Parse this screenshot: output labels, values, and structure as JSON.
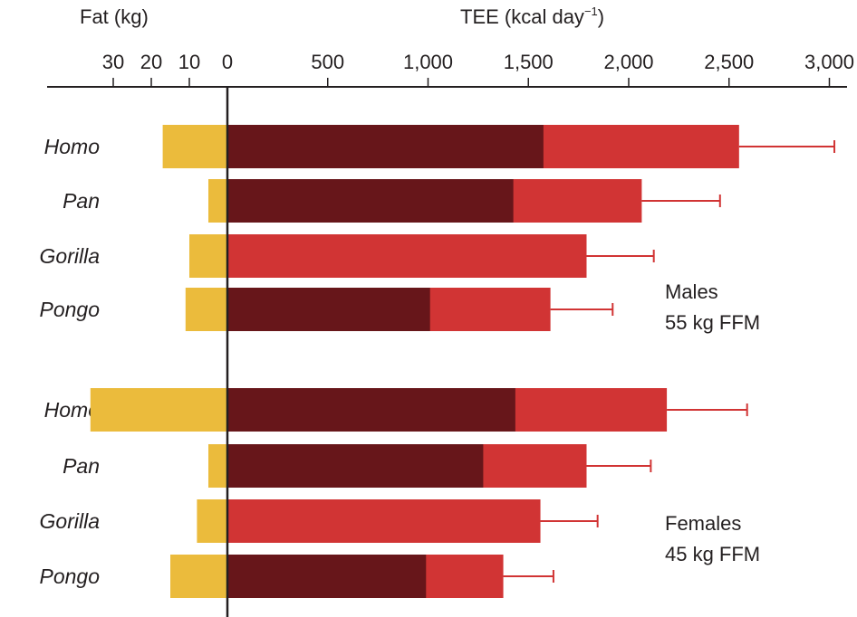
{
  "chart_data": {
    "type": "bar",
    "title": "",
    "fat_axis": {
      "label": "Fat (kg)",
      "ticks": [
        30,
        20,
        10,
        0
      ],
      "tick_labels": [
        "30",
        "20",
        "10",
        "0"
      ]
    },
    "tee_axis": {
      "label": "TEE (kcal day",
      "label_sup": "−1",
      "label_close": ")",
      "ticks": [
        0,
        500,
        1000,
        1500,
        2000,
        2500,
        3000
      ],
      "tick_labels": [
        "0",
        "500",
        "1,000",
        "1,500",
        "2,000",
        "2,500",
        "3,000"
      ],
      "range": [
        0,
        3050
      ]
    },
    "colors": {
      "fat": "#EBBB3C",
      "bmr": "#67161A",
      "tee": "#D13434",
      "error": "#D13434",
      "axis": "#231f20"
    },
    "groups": [
      {
        "label_line1": "Males",
        "label_line2": "55 kg FFM",
        "rows": [
          {
            "species": "Homo",
            "fat": 17,
            "dark": 1575,
            "tee": 2550,
            "err_upper": 3025
          },
          {
            "species": "Pan",
            "fat": 5,
            "dark": 1425,
            "tee": 2065,
            "err_upper": 2455
          },
          {
            "species": "Gorilla",
            "fat": 10,
            "dark": null,
            "tee": 1790,
            "err_upper": 2125
          },
          {
            "species": "Pongo",
            "fat": 11,
            "dark": 1010,
            "tee": 1610,
            "err_upper": 1920
          }
        ]
      },
      {
        "label_line1": "Females",
        "label_line2": "45 kg FFM",
        "rows": [
          {
            "species": "Homo",
            "fat": 36,
            "dark": 1435,
            "tee": 2190,
            "err_upper": 2590
          },
          {
            "species": "Pan",
            "fat": 5,
            "dark": 1275,
            "tee": 1790,
            "err_upper": 2110
          },
          {
            "species": "Gorilla",
            "fat": 8,
            "dark": null,
            "tee": 1560,
            "err_upper": 1845
          },
          {
            "species": "Pongo",
            "fat": 15,
            "dark": 990,
            "tee": 1375,
            "err_upper": 1625
          }
        ]
      }
    ]
  }
}
